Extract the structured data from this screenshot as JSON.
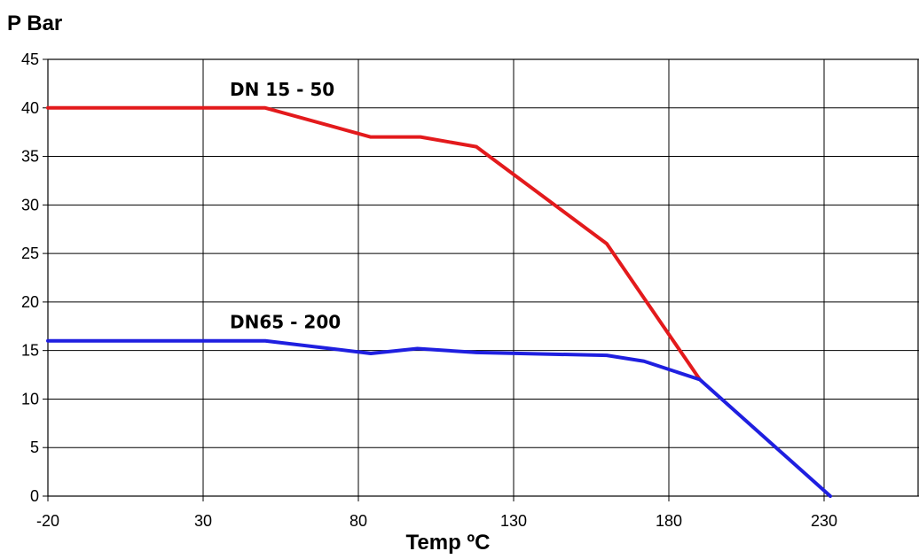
{
  "chart_data": {
    "type": "line",
    "title": "",
    "ylabel": "P Bar",
    "xlabel": "Temp ºC",
    "xlim": [
      -20,
      280
    ],
    "ylim": [
      0,
      45
    ],
    "x_ticks": [
      -20,
      30,
      80,
      130,
      180,
      230
    ],
    "y_ticks": [
      0,
      5,
      10,
      15,
      20,
      25,
      30,
      35,
      40,
      45
    ],
    "grid": true,
    "series": [
      {
        "name": "DN 15 - 50",
        "color": "#e31a1c",
        "x": [
          -20,
          50,
          84,
          100,
          118,
          160,
          190
        ],
        "y": [
          40,
          40,
          37,
          37,
          36,
          26,
          12
        ]
      },
      {
        "name": "DN65 - 200",
        "color": "#1f1fe0",
        "x": [
          -20,
          50,
          84,
          99,
          118,
          160,
          172,
          190,
          232
        ],
        "y": [
          16,
          16,
          14.7,
          15.2,
          14.8,
          14.5,
          13.9,
          12,
          0
        ]
      }
    ]
  }
}
